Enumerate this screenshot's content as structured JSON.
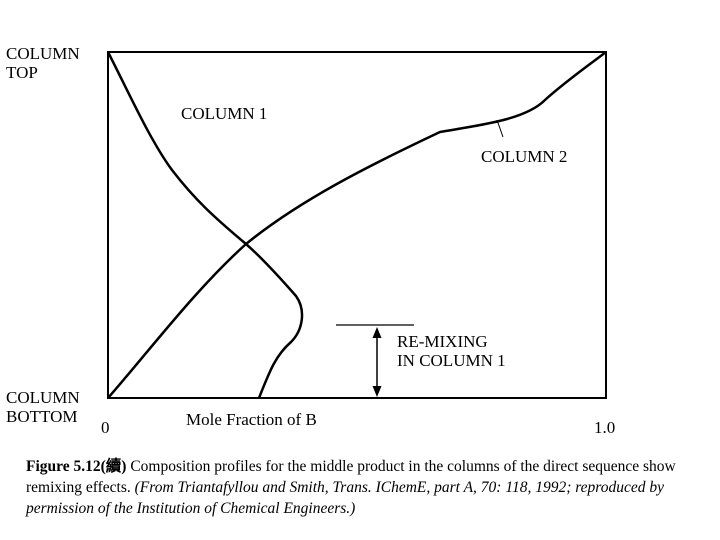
{
  "labels": {
    "column_top": [
      "COLUMN",
      "TOP"
    ],
    "column_bottom": [
      "COLUMN",
      "BOTTOM"
    ],
    "column1": "COLUMN 1",
    "column2": "COLUMN 2",
    "remixing": [
      "RE-MIXING",
      "IN COLUMN 1"
    ],
    "x_label": "Mole Fraction of B",
    "x_min": "0",
    "x_max": "1.0"
  },
  "caption": {
    "figure": "Figure  5.12(續)",
    "text": "Composition profiles for the middle product in the columns of the direct sequence show remixing effects.",
    "source": "(From Triantafyllou and Smith, Trans. IChemE, part A, 70: 118, 1992; reproduced by permission of the Institution of Chemical Engineers.)"
  },
  "colors": {
    "line": "#000000",
    "background": "#ffffff"
  }
}
